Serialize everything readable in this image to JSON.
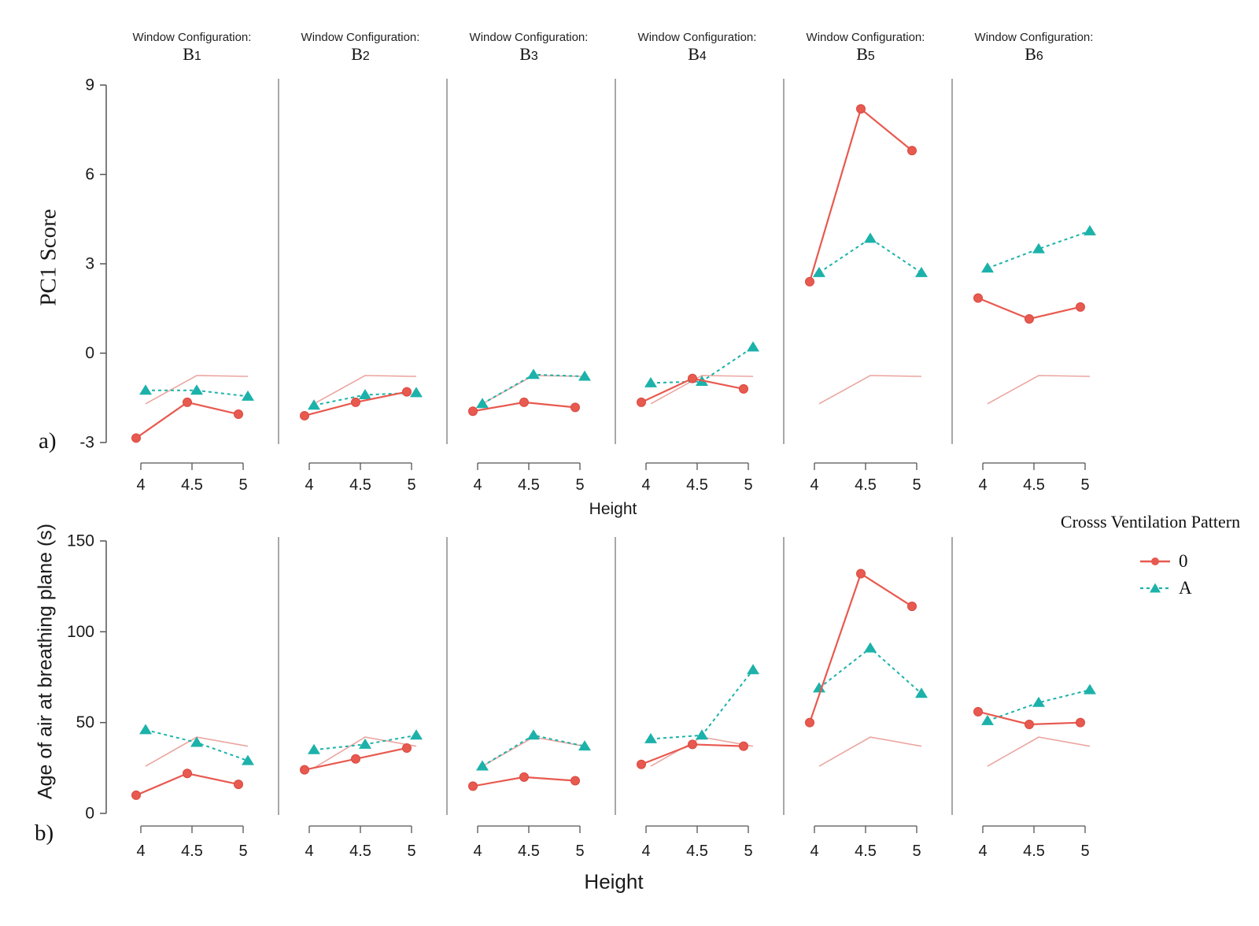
{
  "figure": {
    "row_a_label": "a)",
    "row_b_label": "b)",
    "facet_title_prefix": "Window Configuration:",
    "facets": [
      "B1",
      "B2",
      "B3",
      "B4",
      "B5",
      "B6"
    ],
    "colors": {
      "series_0": "#e8594f",
      "series_0_stroke": "#d84a40",
      "series_A": "#1cb2aa",
      "trend": "#eba6a1",
      "separator": "#9e9e9e",
      "axis": "#555555",
      "text": "#1a1a1a"
    },
    "legend": {
      "title": "Crosss Ventilation Pattern",
      "items": [
        {
          "label": "0",
          "series": "0",
          "marker": "circle",
          "line": "solid"
        },
        {
          "label": "A",
          "series": "A",
          "marker": "triangle",
          "line": "dashed"
        }
      ]
    }
  },
  "chart_data": [
    {
      "type": "line",
      "row": "a",
      "xlabel": "Height",
      "ylabel": "PC1 Score",
      "x": [
        4,
        4.5,
        5
      ],
      "x_tick_labels": [
        "4",
        "4.5",
        "5"
      ],
      "yticks": [
        9,
        6,
        3,
        0,
        -3
      ],
      "ylim": [
        -3.3,
        9.3
      ],
      "legend_position": "none",
      "grid": false,
      "facets": [
        {
          "facet": "B1",
          "series": [
            {
              "name": "0",
              "values": [
                -2.85,
                -1.65,
                -2.05
              ]
            },
            {
              "name": "A",
              "values": [
                -1.25,
                -1.25,
                -1.45
              ]
            },
            {
              "name": "trend",
              "values": [
                -1.7,
                -0.75,
                -0.78
              ]
            }
          ]
        },
        {
          "facet": "B2",
          "series": [
            {
              "name": "0",
              "values": [
                -2.1,
                -1.65,
                -1.3
              ]
            },
            {
              "name": "A",
              "values": [
                -1.75,
                -1.4,
                -1.33
              ]
            },
            {
              "name": "trend",
              "values": [
                -1.7,
                -0.75,
                -0.78
              ]
            }
          ]
        },
        {
          "facet": "B3",
          "series": [
            {
              "name": "0",
              "values": [
                -1.95,
                -1.65,
                -1.82
              ]
            },
            {
              "name": "A",
              "values": [
                -1.7,
                -0.72,
                -0.78
              ]
            },
            {
              "name": "trend",
              "values": [
                -1.7,
                -0.75,
                -0.78
              ]
            }
          ]
        },
        {
          "facet": "B4",
          "series": [
            {
              "name": "0",
              "values": [
                -1.65,
                -0.85,
                -1.2
              ]
            },
            {
              "name": "A",
              "values": [
                -1.0,
                -0.95,
                0.2
              ]
            },
            {
              "name": "trend",
              "values": [
                -1.7,
                -0.75,
                -0.78
              ]
            }
          ]
        },
        {
          "facet": "B5",
          "series": [
            {
              "name": "0",
              "values": [
                2.4,
                8.2,
                6.8
              ]
            },
            {
              "name": "A",
              "values": [
                2.7,
                3.85,
                2.7
              ]
            },
            {
              "name": "trend",
              "values": [
                -1.7,
                -0.75,
                -0.78
              ]
            }
          ]
        },
        {
          "facet": "B6",
          "series": [
            {
              "name": "0",
              "values": [
                1.85,
                1.15,
                1.55
              ]
            },
            {
              "name": "A",
              "values": [
                2.85,
                3.5,
                4.1
              ]
            },
            {
              "name": "trend",
              "values": [
                -1.7,
                -0.75,
                -0.78
              ]
            }
          ]
        }
      ]
    },
    {
      "type": "line",
      "row": "b",
      "xlabel": "Height",
      "ylabel": "Age of air at breathing plane (s)",
      "x": [
        4,
        4.5,
        5
      ],
      "x_tick_labels": [
        "4",
        "4.5",
        "5"
      ],
      "yticks": [
        150,
        100,
        50,
        0
      ],
      "ylim": [
        0,
        155
      ],
      "legend_position": "right",
      "grid": false,
      "facets": [
        {
          "facet": "B1",
          "series": [
            {
              "name": "0",
              "values": [
                10,
                22,
                16
              ]
            },
            {
              "name": "A",
              "values": [
                46,
                39,
                29
              ]
            },
            {
              "name": "trend",
              "values": [
                26,
                42,
                37
              ]
            }
          ]
        },
        {
          "facet": "B2",
          "series": [
            {
              "name": "0",
              "values": [
                24,
                30,
                36
              ]
            },
            {
              "name": "A",
              "values": [
                35,
                38,
                43
              ]
            },
            {
              "name": "trend",
              "values": [
                25,
                42,
                37
              ]
            }
          ]
        },
        {
          "facet": "B3",
          "series": [
            {
              "name": "0",
              "values": [
                15,
                20,
                18
              ]
            },
            {
              "name": "A",
              "values": [
                26,
                43,
                37
              ]
            },
            {
              "name": "trend",
              "values": [
                26,
                42,
                37
              ]
            }
          ]
        },
        {
          "facet": "B4",
          "series": [
            {
              "name": "0",
              "values": [
                27,
                38,
                37
              ]
            },
            {
              "name": "A",
              "values": [
                41,
                43,
                79
              ]
            },
            {
              "name": "trend",
              "values": [
                26,
                42,
                37
              ]
            }
          ]
        },
        {
          "facet": "B5",
          "series": [
            {
              "name": "0",
              "values": [
                50,
                132,
                114
              ]
            },
            {
              "name": "A",
              "values": [
                69,
                91,
                66
              ]
            },
            {
              "name": "trend",
              "values": [
                26,
                42,
                37
              ]
            }
          ]
        },
        {
          "facet": "B6",
          "series": [
            {
              "name": "0",
              "values": [
                56,
                49,
                50
              ]
            },
            {
              "name": "A",
              "values": [
                51,
                61,
                68
              ]
            },
            {
              "name": "trend",
              "values": [
                26,
                42,
                37
              ]
            }
          ]
        }
      ]
    }
  ]
}
